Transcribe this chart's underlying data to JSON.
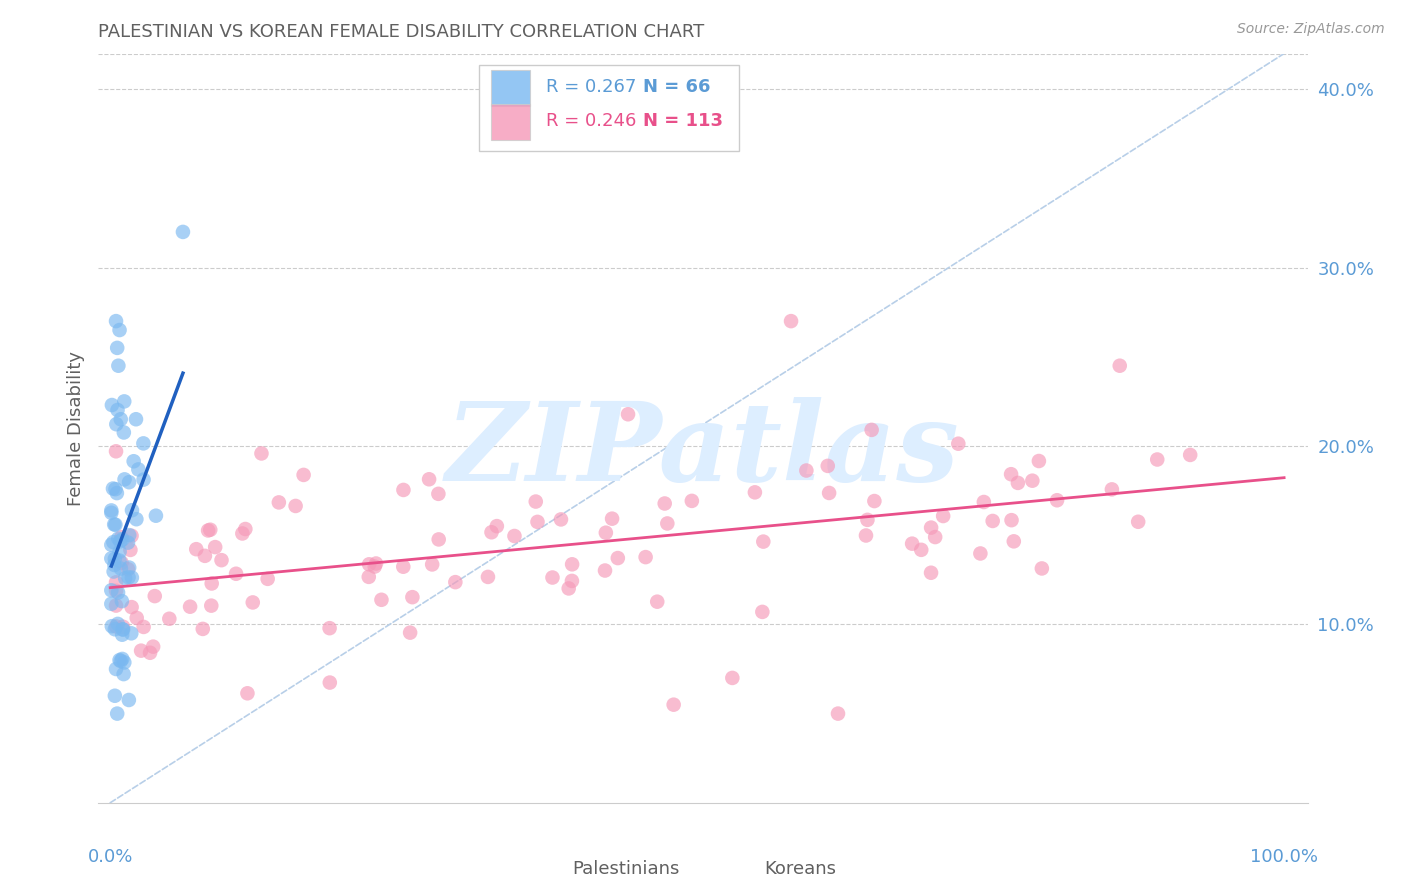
{
  "title": "PALESTINIAN VS KOREAN FEMALE DISABILITY CORRELATION CHART",
  "source": "Source: ZipAtlas.com",
  "ylabel": "Female Disability",
  "palestinians_R": 0.267,
  "palestinians_N": 66,
  "koreans_R": 0.246,
  "koreans_N": 113,
  "blue_color": "#7ab8f0",
  "pink_color": "#f599b8",
  "blue_line_color": "#2060c0",
  "pink_line_color": "#e8508a",
  "diag_line_color": "#b8cfe8",
  "axis_color": "#5b9bd5",
  "title_color": "#606060",
  "source_color": "#999999",
  "watermark_color": "#ddeeff",
  "background_color": "#ffffff",
  "grid_color": "#cccccc",
  "ylim": [
    0.0,
    0.42
  ],
  "xlim": [
    -0.01,
    1.02
  ],
  "yticks": [
    0.1,
    0.2,
    0.3,
    0.4
  ],
  "ytick_labels": [
    "10.0%",
    "20.0%",
    "30.0%",
    "40.0%"
  ]
}
